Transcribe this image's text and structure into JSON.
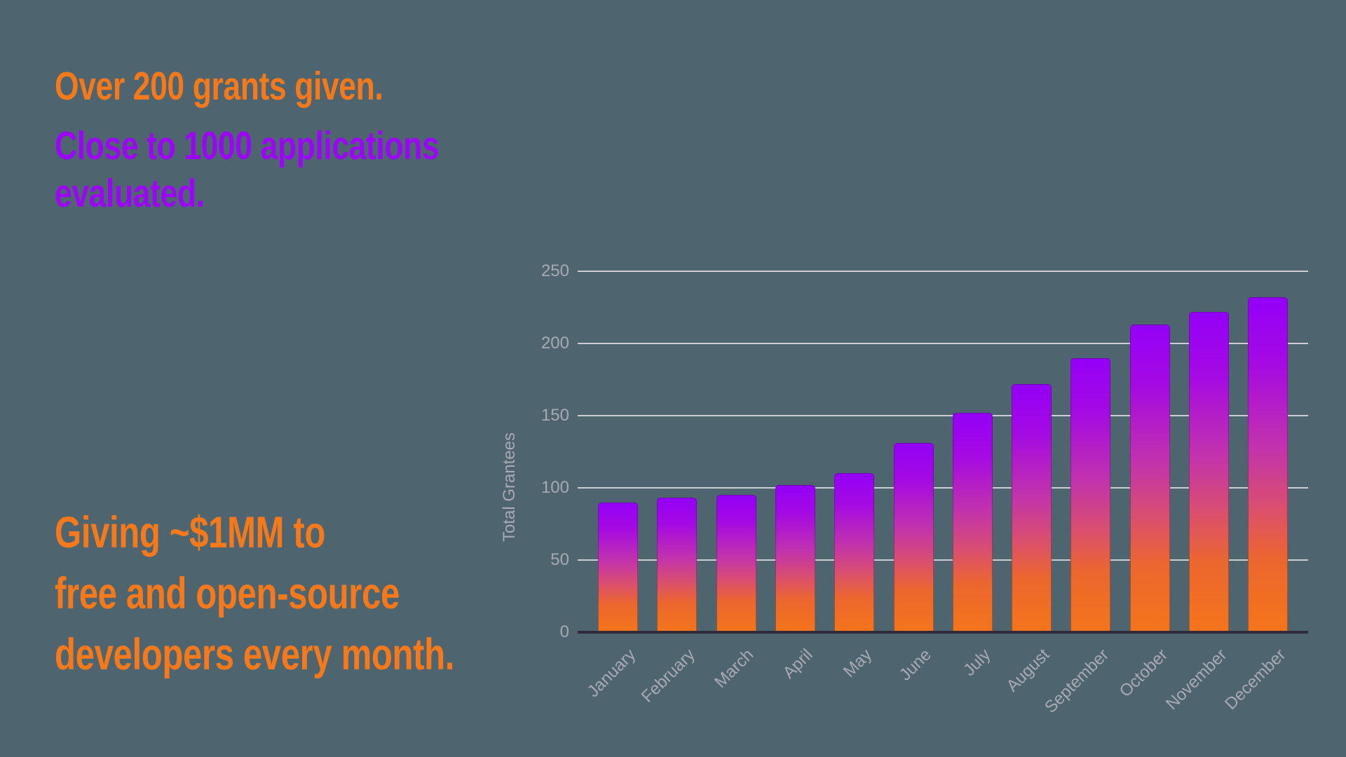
{
  "colors": {
    "background": "#4e6570",
    "orange": "#f8791c",
    "purple": "#9b03fd",
    "axis_text": "#a8a9b3",
    "gridline": "#ccced3",
    "baseline": "#302b3a"
  },
  "stats": {
    "grants": {
      "text": "Over 200 grants given."
    },
    "applications": {
      "line1": "Close to 1000 applications",
      "line2": "evaluated."
    },
    "giving": {
      "line1": "Giving ~$1MM to",
      "line2": "free and open-source",
      "line3": "developers every month."
    }
  },
  "chart_data": {
    "type": "bar",
    "categories": [
      "January",
      "February",
      "March",
      "April",
      "May",
      "June",
      "July",
      "August",
      "September",
      "October",
      "November",
      "December"
    ],
    "values": [
      90,
      93,
      95,
      102,
      110,
      131,
      152,
      172,
      190,
      213,
      222,
      232
    ],
    "title": "",
    "xlabel": "",
    "ylabel": "Total Grantees",
    "ylim": [
      0,
      250
    ],
    "yticks": [
      0,
      50,
      100,
      150,
      200,
      250
    ],
    "grid": true,
    "legend": false,
    "bar_gradient": [
      {
        "color": "#9400f8",
        "pos": "0%"
      },
      {
        "color": "#a50ae2",
        "pos": "20%"
      },
      {
        "color": "#c233ac",
        "pos": "45%"
      },
      {
        "color": "#da4f6e",
        "pos": "63%"
      },
      {
        "color": "#ec662f",
        "pos": "78%"
      },
      {
        "color": "#f4751b",
        "pos": "100%"
      }
    ]
  }
}
